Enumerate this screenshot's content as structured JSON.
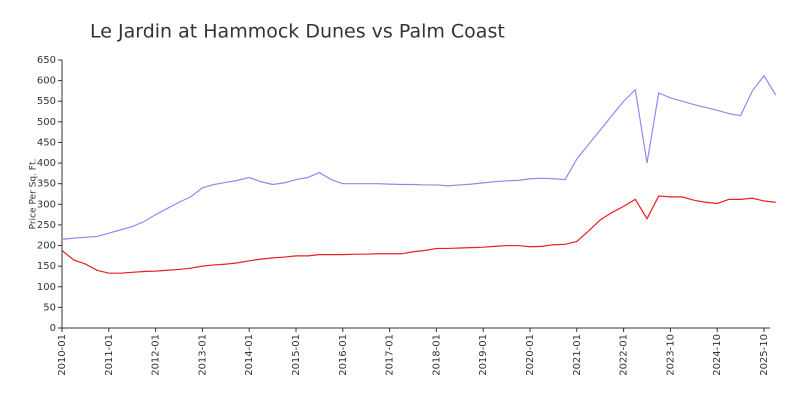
{
  "chart_data": {
    "type": "line",
    "title": "Le Jardin at Hammock Dunes vs Palm Coast",
    "y_label": "Price Per Sq. Ft.",
    "x": [
      "2010-01",
      "2010-04",
      "2010-07",
      "2010-10",
      "2011-01",
      "2011-04",
      "2011-07",
      "2011-10",
      "2012-01",
      "2012-04",
      "2012-07",
      "2012-10",
      "2013-01",
      "2013-04",
      "2013-07",
      "2013-10",
      "2014-01",
      "2014-04",
      "2014-07",
      "2014-10",
      "2015-01",
      "2015-04",
      "2015-07",
      "2015-10",
      "2016-01",
      "2016-04",
      "2016-07",
      "2016-10",
      "2017-01",
      "2017-04",
      "2017-07",
      "2017-10",
      "2018-01",
      "2018-04",
      "2018-07",
      "2018-10",
      "2019-01",
      "2019-04",
      "2019-07",
      "2019-10",
      "2020-01",
      "2020-04",
      "2020-07",
      "2020-10",
      "2021-01",
      "2021-04",
      "2021-07",
      "2021-10",
      "2022-01",
      "2022-03",
      "2022-05",
      "2022-07",
      "2023-10",
      "2024-01",
      "2024-04",
      "2024-07",
      "2024-10",
      "2025-01",
      "2025-04",
      "2025-07",
      "2025-10",
      "2025-11"
    ],
    "series": [
      {
        "color": "#8c8cf0",
        "values": [
          215,
          218,
          220,
          222,
          230,
          238,
          246,
          258,
          275,
          290,
          305,
          318,
          340,
          348,
          353,
          358,
          365,
          355,
          348,
          352,
          360,
          365,
          377,
          360,
          350,
          350,
          350,
          350,
          349,
          348,
          348,
          347,
          347,
          345,
          347,
          349,
          352,
          355,
          357,
          358,
          362,
          363,
          362,
          360,
          410,
          445,
          480,
          515,
          550,
          578,
          400,
          570,
          558,
          550,
          542,
          535,
          528,
          520,
          515,
          575,
          612,
          565
        ]
      },
      {
        "color": "#e82020",
        "values": [
          188,
          165,
          155,
          140,
          133,
          133,
          135,
          137,
          138,
          140,
          142,
          145,
          150,
          153,
          155,
          158,
          163,
          167,
          170,
          172,
          175,
          175,
          178,
          178,
          178,
          179,
          179,
          180,
          180,
          180,
          185,
          188,
          193,
          193,
          194,
          195,
          196,
          198,
          200,
          200,
          197,
          198,
          202,
          203,
          210,
          235,
          262,
          280,
          295,
          312,
          265,
          320,
          318,
          318,
          310,
          305,
          302,
          312,
          312,
          315,
          308,
          305
        ]
      }
    ],
    "xticks": [
      "2010-01",
      "2011-01",
      "2012-01",
      "2013-01",
      "2014-01",
      "2015-01",
      "2016-01",
      "2017-01",
      "2018-01",
      "2019-01",
      "2020-01",
      "2021-01",
      "2022-01",
      "2023-10",
      "2024-10",
      "2025-10"
    ],
    "ylim": [
      0,
      650
    ],
    "yticks": [
      0,
      50,
      100,
      150,
      200,
      250,
      300,
      350,
      400,
      450,
      500,
      550,
      600,
      650
    ]
  }
}
